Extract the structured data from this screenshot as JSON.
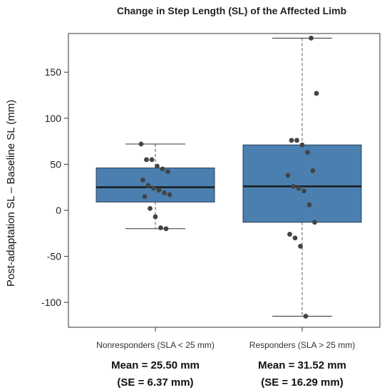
{
  "chart_data": {
    "type": "box",
    "title": "Change in Step Length (SL) of the Affected Limb",
    "ylabel": "Post-adaptation SL – Baseline SL (mm)",
    "xlabel": "",
    "ylim": [
      -127,
      192
    ],
    "yticks": [
      -100,
      -50,
      0,
      50,
      100,
      150
    ],
    "grid": false,
    "box_color": "#4a7fb0",
    "point_color": "#444444",
    "categories": [
      "Nonresponders (SLA < 25 mm)",
      "Responders (SLA > 25 mm)"
    ],
    "boxes": [
      {
        "category": "Nonresponders (SLA < 25 mm)",
        "whisker_low": -20,
        "q1": 9,
        "median": 25,
        "q3": 46,
        "whisker_high": 72,
        "points": [
          72,
          55,
          55,
          48,
          45,
          42,
          33,
          27,
          24,
          22,
          19,
          17,
          15,
          2,
          -7,
          -19,
          -20
        ],
        "annotation": [
          "Mean = 25.50 mm",
          "(SE = 6.37 mm)"
        ]
      },
      {
        "category": "Responders (SLA > 25 mm)",
        "whisker_low": -115,
        "q1": -13,
        "median": 26,
        "q3": 71,
        "whisker_high": 187,
        "points": [
          187,
          127,
          76,
          76,
          71,
          63,
          43,
          38,
          26,
          24,
          21,
          6,
          -13,
          -26,
          -30,
          -39,
          -115
        ],
        "annotation": [
          "Mean = 31.52 mm",
          "(SE = 16.29 mm)"
        ]
      }
    ]
  }
}
